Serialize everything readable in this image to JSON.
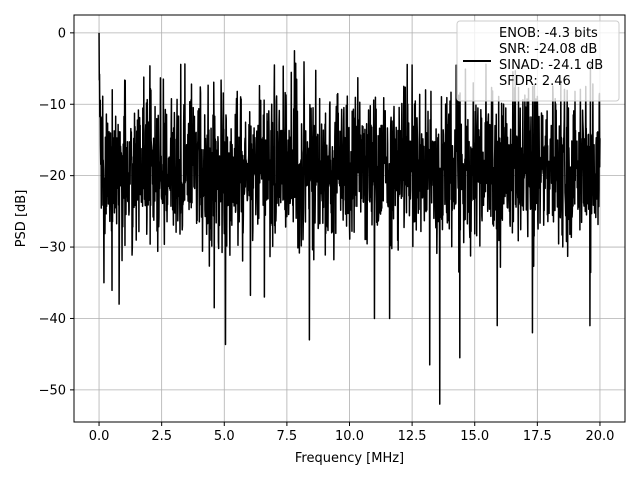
{
  "chart_data": {
    "type": "line",
    "title": "",
    "xlabel": "Frequency [MHz]",
    "ylabel": "PSD [dB]",
    "xlim": [
      -1.0,
      21.0
    ],
    "ylim": [
      -54.5,
      2.5
    ],
    "xticks": [
      0.0,
      2.5,
      5.0,
      7.5,
      10.0,
      12.5,
      15.0,
      17.5,
      20.0
    ],
    "xtick_labels": [
      "0.0",
      "2.5",
      "5.0",
      "7.5",
      "10.0",
      "12.5",
      "15.0",
      "17.5",
      "20.0"
    ],
    "yticks": [
      0,
      -10,
      -20,
      -30,
      -40,
      -50
    ],
    "ytick_labels": [
      "0",
      "−10",
      "−20",
      "−30",
      "−40",
      "−50"
    ],
    "grid": true,
    "legend_position": "top-right",
    "series": [
      {
        "name": "ENOB: -4.3 bits\nSNR: -24.08 dB\nSINAD: -24.1 dB\nSFDR: 2.46",
        "legend_lines": [
          "ENOB: -4.3 bits",
          "SNR: -24.08 dB",
          "SINAD: -24.1 dB",
          "SFDR: 2.46"
        ],
        "color": "#000000",
        "x_range": [
          0.0,
          20.0
        ],
        "peak": {
          "x": 0.0,
          "y": 0.0
        },
        "noise_floor_typical": [
          -30,
          -8
        ],
        "notable_dips": [
          {
            "x": 0.2,
            "y": -35
          },
          {
            "x": 0.8,
            "y": -38
          },
          {
            "x": 4.6,
            "y": -38.5
          },
          {
            "x": 6.6,
            "y": -37
          },
          {
            "x": 8.4,
            "y": -43
          },
          {
            "x": 11.0,
            "y": -40
          },
          {
            "x": 11.6,
            "y": -40
          },
          {
            "x": 13.2,
            "y": -46.5
          },
          {
            "x": 13.6,
            "y": -52
          },
          {
            "x": 14.4,
            "y": -45.5
          },
          {
            "x": 15.9,
            "y": -41
          },
          {
            "x": 17.3,
            "y": -42
          },
          {
            "x": 19.6,
            "y": -41
          }
        ],
        "notable_peaks": [
          {
            "x": 7.0,
            "y": -4.5
          },
          {
            "x": 7.8,
            "y": -2.5
          },
          {
            "x": 12.5,
            "y": -4.5
          },
          {
            "x": 14.3,
            "y": -4.5
          }
        ]
      }
    ]
  }
}
